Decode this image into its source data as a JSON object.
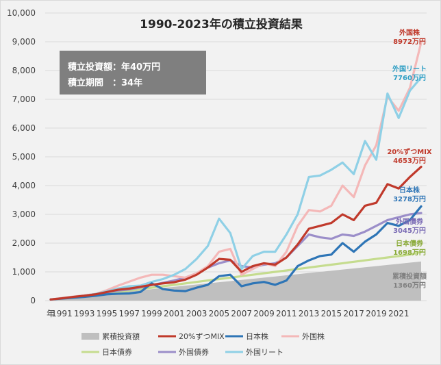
{
  "title": "1990-2023年の積立投資結果",
  "info_box": {
    "line1": "積立投資額：年40万円",
    "line2": "積立期間　：34年"
  },
  "chart_data": {
    "type": "line",
    "title": "1990-2023年の積立投資結果",
    "x_unit_label": "年",
    "x": [
      1990,
      1991,
      1992,
      1993,
      1994,
      1995,
      1996,
      1997,
      1998,
      1999,
      2000,
      2001,
      2002,
      2003,
      2004,
      2005,
      2006,
      2007,
      2008,
      2009,
      2010,
      2011,
      2012,
      2013,
      2014,
      2015,
      2016,
      2017,
      2018,
      2019,
      2020,
      2021,
      2022,
      2023
    ],
    "x_tick_labels": [
      "1991",
      "1993",
      "1995",
      "1997",
      "1999",
      "2001",
      "2003",
      "2005",
      "2007",
      "2009",
      "2011",
      "2013",
      "2015",
      "2017",
      "2019",
      "2021"
    ],
    "ylim": [
      0,
      10000
    ],
    "y_ticks": [
      "0",
      "1,000",
      "2,000",
      "3,000",
      "4,000",
      "5,000",
      "6,000",
      "7,000",
      "8,000",
      "9,000",
      "10,000"
    ],
    "grid": true,
    "legend_position": "bottom",
    "series": [
      {
        "name": "累積投資額",
        "type": "area",
        "color": "#bfbfbf",
        "values": [
          40,
          80,
          120,
          160,
          200,
          240,
          280,
          320,
          360,
          400,
          440,
          480,
          520,
          560,
          600,
          640,
          680,
          720,
          760,
          800,
          840,
          880,
          920,
          960,
          1000,
          1040,
          1080,
          1120,
          1160,
          1200,
          1240,
          1280,
          1320,
          1360
        ]
      },
      {
        "name": "20%ずつMIX",
        "color": "#c0392b",
        "values": [
          40,
          80,
          130,
          170,
          220,
          300,
          380,
          420,
          480,
          550,
          600,
          640,
          730,
          900,
          1150,
          1450,
          1420,
          1000,
          1200,
          1300,
          1250,
          1500,
          1950,
          2500,
          2600,
          2700,
          3000,
          2800,
          3300,
          3400,
          4050,
          3900,
          4300,
          4653
        ]
      },
      {
        "name": "日本株",
        "color": "#2e75b6",
        "values": [
          40,
          70,
          100,
          130,
          170,
          220,
          240,
          250,
          300,
          600,
          400,
          350,
          330,
          450,
          550,
          850,
          900,
          500,
          600,
          650,
          550,
          700,
          1200,
          1400,
          1550,
          1600,
          2000,
          1700,
          2050,
          2300,
          2700,
          2600,
          2800,
          3278
        ]
      },
      {
        "name": "外国株",
        "color": "#f4b8b8",
        "values": [
          40,
          90,
          140,
          180,
          230,
          360,
          520,
          660,
          800,
          900,
          900,
          850,
          800,
          950,
          1200,
          1700,
          1800,
          900,
          1100,
          1300,
          1200,
          1700,
          2600,
          3150,
          3100,
          3300,
          4000,
          3600,
          4700,
          5400,
          7100,
          6600,
          7400,
          8972
        ]
      },
      {
        "name": "日本債券",
        "color": "#c5dc8e",
        "values": [
          40,
          80,
          120,
          160,
          200,
          250,
          300,
          350,
          400,
          450,
          500,
          550,
          600,
          650,
          700,
          750,
          800,
          850,
          900,
          950,
          1000,
          1050,
          1100,
          1150,
          1200,
          1250,
          1300,
          1350,
          1400,
          1450,
          1500,
          1550,
          1600,
          1698
        ]
      },
      {
        "name": "外国債券",
        "color": "#9b8ec9",
        "values": [
          40,
          80,
          130,
          180,
          230,
          290,
          350,
          390,
          460,
          540,
          620,
          700,
          800,
          950,
          1150,
          1300,
          1400,
          1200,
          1150,
          1250,
          1300,
          1500,
          1900,
          2300,
          2200,
          2150,
          2300,
          2250,
          2400,
          2600,
          2800,
          2900,
          3000,
          3045
        ]
      },
      {
        "name": "外国リート",
        "color": "#8fd0e6",
        "values": [
          40,
          80,
          130,
          170,
          230,
          320,
          420,
          500,
          520,
          650,
          750,
          900,
          1100,
          1450,
          1900,
          2850,
          2350,
          1100,
          1550,
          1700,
          1700,
          2300,
          3000,
          4300,
          4350,
          4550,
          4800,
          4400,
          5550,
          4900,
          7200,
          6350,
          7300,
          7760
        ]
      }
    ],
    "end_labels": [
      {
        "series": "外国株",
        "line1": "外国株",
        "line2": "8972万円",
        "color": "#c0392b"
      },
      {
        "series": "外国リート",
        "line1": "外国リート",
        "line2": "7760万円",
        "color": "#2e9ec4"
      },
      {
        "series": "20%ずつMIX",
        "line1": "20%ずつMIX",
        "line2": "4653万円",
        "color": "#c0392b"
      },
      {
        "series": "日本株",
        "line1": "日本株",
        "line2": "3278万円",
        "color": "#2e75b6"
      },
      {
        "series": "外国債券",
        "line1": "外国債券",
        "line2": "3045万円",
        "color": "#7a6bb5"
      },
      {
        "series": "日本債券",
        "line1": "日本債券",
        "line2": "1698万円",
        "color": "#8bab3a"
      },
      {
        "series": "累積投資額",
        "line1": "累積投資額",
        "line2": "1360万円",
        "color": "#808080"
      }
    ],
    "legend_order": [
      "累積投資額",
      "20%ずつMIX",
      "日本株",
      "外国株",
      "日本債券",
      "外国債券",
      "外国リート"
    ]
  }
}
